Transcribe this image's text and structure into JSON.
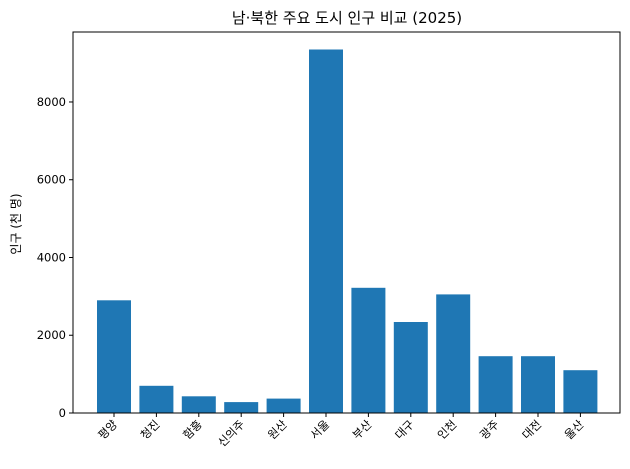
{
  "chart_data": {
    "type": "bar",
    "title": "남·북한 주요 도시 인구 비교 (2025)",
    "xlabel": "",
    "ylabel": "인구 (천 명)",
    "categories": [
      "평양",
      "청진",
      "함흥",
      "신의주",
      "원산",
      "서울",
      "부산",
      "대구",
      "인천",
      "광주",
      "대전",
      "울산"
    ],
    "values": [
      2900,
      700,
      430,
      280,
      370,
      9350,
      3220,
      2340,
      3050,
      1460,
      1460,
      1100
    ],
    "ylim": [
      0,
      9800
    ],
    "yticks": [
      0,
      2000,
      4000,
      6000,
      8000
    ],
    "grid": false,
    "legend": "none",
    "bar_color": "#1f77b4"
  }
}
